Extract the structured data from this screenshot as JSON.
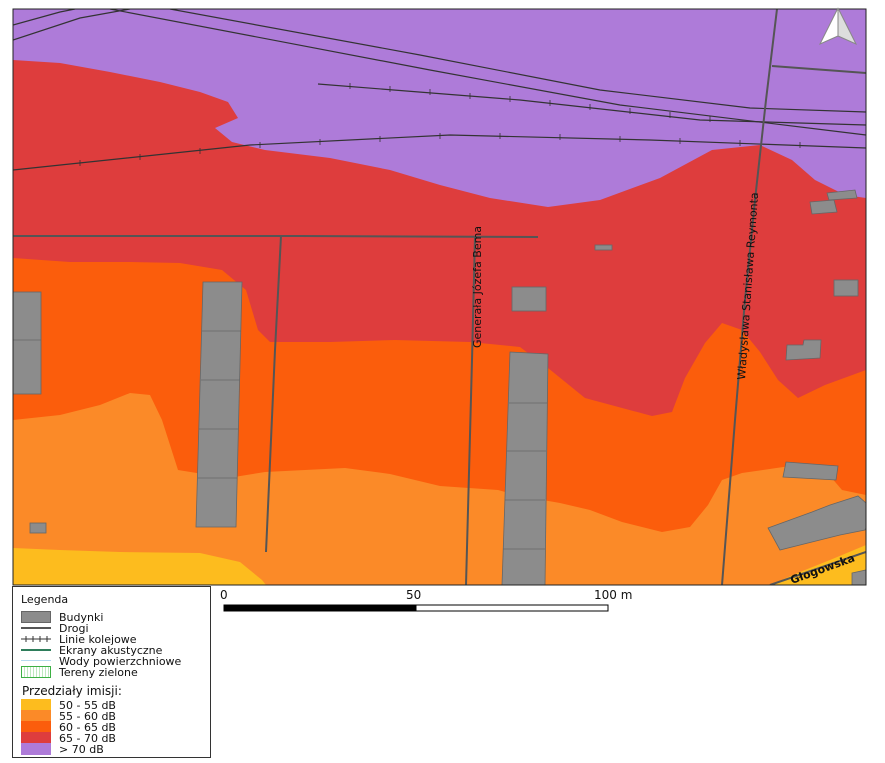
{
  "streets": {
    "bema": "Generała Józefa Bema",
    "reymonta": "Władysława Stanisława Reymonta",
    "glogowska": "Głogowska"
  },
  "legend": {
    "title": "Legenda",
    "items": [
      {
        "label": "Budynki",
        "symbol": "building-fill"
      },
      {
        "label": "Drogi",
        "symbol": "road-line"
      },
      {
        "label": "Linie kolejowe",
        "symbol": "railway-line"
      },
      {
        "label": "Ekrany akustyczne",
        "symbol": "acoustic-screen-line"
      },
      {
        "label": "Wody powierzchniowe",
        "symbol": "water-line"
      },
      {
        "label": "Tereny zielone",
        "symbol": "green-area-fill"
      }
    ],
    "ranges_title": "Przedziały imisji:",
    "ranges": [
      {
        "label": "50 - 55 dB",
        "color": "#fdbc1e"
      },
      {
        "label": "55 - 60 dB",
        "color": "#fb8a28"
      },
      {
        "label": "60 - 65 dB",
        "color": "#fb5d0c"
      },
      {
        "label": "65 - 70 dB",
        "color": "#de3d3d"
      },
      {
        "label": "> 70 dB",
        "color": "#ae7bd9"
      }
    ]
  },
  "scale_bar": {
    "labels": [
      "0",
      "50",
      "100 m"
    ]
  },
  "colors": {
    "building": "#8c8c8c",
    "road": "#555555"
  }
}
